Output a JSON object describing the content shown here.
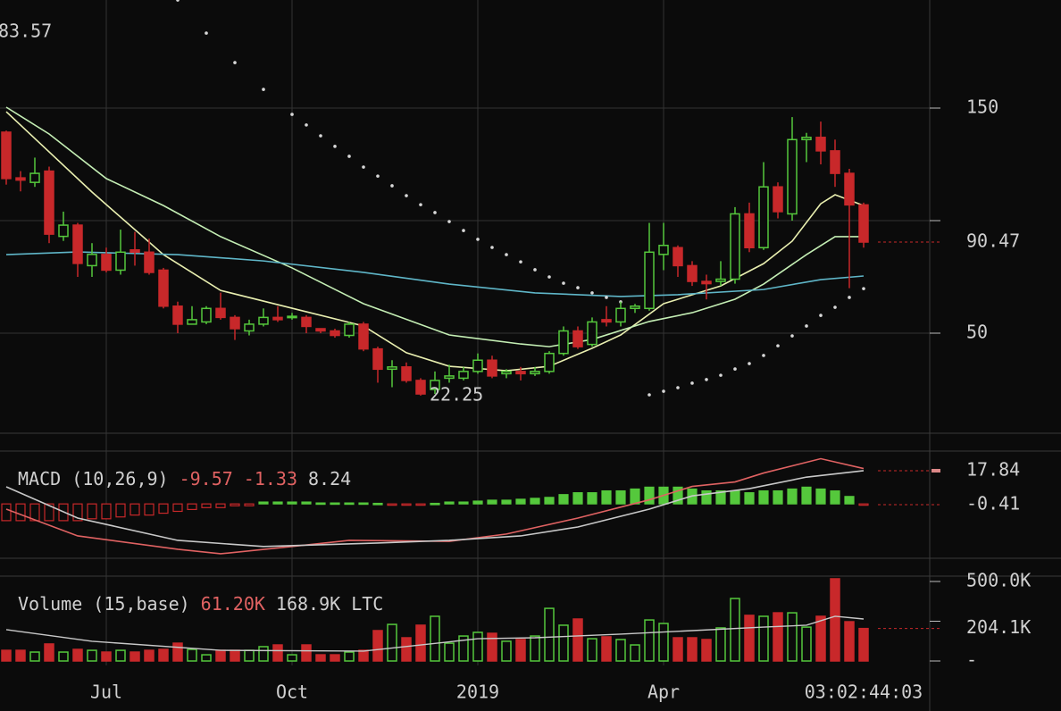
{
  "chart_data": [
    {
      "type": "candlestick",
      "categories": [
        null,
        null,
        null,
        null,
        null,
        null,
        null,
        "Jul",
        null,
        null,
        null,
        null,
        null,
        null,
        null,
        null,
        null,
        null,
        null,
        null,
        "Oct",
        null,
        null,
        null,
        null,
        null,
        null,
        null,
        null,
        null,
        null,
        null,
        null,
        "2019",
        null,
        null,
        null,
        null,
        null,
        null,
        null,
        null,
        null,
        null,
        null,
        null,
        "Apr",
        null,
        null,
        null,
        null,
        null,
        null,
        null,
        null,
        null,
        null,
        null,
        null,
        null,
        null
      ],
      "countdown": "03:02:44:03",
      "annotation": "83.57",
      "ylim": [
        5.56,
        198.02
      ],
      "yticks": [
        50,
        150
      ],
      "minor_yticks": [
        100
      ],
      "up_color": "#55c83c",
      "down_color": "#c8282a",
      "candles": {
        "open": [
          139.3,
          119,
          117,
          122,
          93,
          98,
          80,
          85,
          78,
          87,
          86,
          78,
          62,
          54,
          55,
          61,
          57,
          51,
          54,
          57,
          57,
          57,
          52,
          51,
          49,
          54,
          43,
          34,
          35,
          29,
          25,
          30,
          30,
          33,
          38,
          32,
          33,
          32,
          33,
          41,
          51,
          45,
          56,
          55,
          61,
          61,
          85,
          88,
          80,
          73,
          73,
          74,
          103,
          88,
          115,
          103,
          136,
          137,
          131,
          121,
          107
        ],
        "high": [
          140,
          122,
          128,
          124,
          104,
          99,
          90,
          88,
          96,
          95,
          92,
          79,
          64,
          62,
          62,
          68,
          58,
          56,
          61,
          62,
          59,
          58,
          52,
          52,
          55,
          55,
          44,
          38,
          37,
          30,
          33,
          36,
          35,
          41,
          40,
          34,
          35,
          35,
          42,
          53,
          53,
          57,
          62,
          64,
          63,
          99,
          99,
          89,
          82,
          76,
          82,
          106,
          108,
          126,
          117,
          146,
          139,
          144,
          136,
          123,
          108
        ],
        "low": [
          116,
          113,
          115,
          90,
          91,
          75,
          75,
          77,
          76,
          80,
          76,
          61,
          50,
          54,
          54,
          56,
          47,
          49,
          53,
          55,
          56,
          50,
          50,
          48,
          48,
          42,
          28,
          26,
          28,
          22.25,
          23,
          28,
          29,
          32,
          30,
          30,
          29,
          31,
          32,
          40,
          43,
          44,
          53,
          53,
          59,
          60,
          78,
          75,
          71,
          65,
          71,
          72,
          86,
          87,
          101,
          100,
          126,
          125,
          115,
          70,
          88
        ],
        "close": [
          118.7,
          118,
          121,
          94,
          98,
          81,
          85,
          78,
          86,
          86,
          77,
          62,
          54,
          56,
          61,
          57,
          52,
          54,
          57,
          56,
          57.5,
          53,
          51,
          49,
          54,
          43,
          34,
          35,
          29,
          23,
          29,
          31,
          33,
          38,
          31,
          33,
          32,
          33,
          41,
          51,
          44,
          55,
          55,
          61,
          62,
          86,
          89,
          80,
          73,
          72,
          74,
          103,
          88,
          115,
          104,
          136,
          137,
          131,
          121,
          107,
          90.47
        ]
      },
      "lines": [
        {
          "color": "#e9efb0",
          "x": [
            0,
            2,
            6,
            11,
            15,
            20,
            25,
            28,
            31,
            35,
            38,
            41,
            43,
            46,
            50,
            53,
            55,
            57,
            58,
            60
          ],
          "values": [
            148.4,
            136.5,
            112.7,
            84.9,
            69.0,
            61.1,
            53.2,
            41.3,
            35.3,
            33.3,
            35.3,
            43.3,
            49.2,
            63.1,
            71.0,
            80.9,
            90.9,
            107.5,
            111.5,
            106.7
          ]
        },
        {
          "color": "#c4eeb4",
          "x": [
            0,
            3,
            7,
            11,
            15,
            20,
            25,
            31,
            36,
            38,
            41,
            45,
            48,
            51,
            53,
            56,
            58,
            60
          ],
          "values": [
            150.4,
            138.5,
            118.7,
            106.7,
            92.9,
            79.0,
            63.1,
            49.2,
            45.2,
            44.0,
            47.2,
            55.2,
            59.1,
            65.1,
            71.8,
            84.9,
            92.9,
            92.9
          ]
        },
        {
          "color": "#5fb6c8",
          "x": [
            0,
            5,
            12,
            18,
            25,
            31,
            37,
            43,
            47,
            53,
            57,
            60
          ],
          "values": [
            84.9,
            86.1,
            84.9,
            82.1,
            77.0,
            71.8,
            67.9,
            66.3,
            67.1,
            69.4,
            73.8,
            75.4
          ]
        }
      ],
      "sar": {
        "color": "#d8d8d8",
        "x": [
          12,
          14,
          16,
          18,
          20,
          21,
          22,
          23,
          24,
          25,
          26,
          27,
          28,
          29,
          30,
          31,
          32,
          33,
          34,
          35,
          36,
          37,
          38,
          39,
          40,
          41,
          42,
          43,
          44,
          45,
          46,
          47,
          48,
          49,
          50,
          51,
          52,
          53,
          54,
          55,
          56,
          57,
          58,
          59,
          60
        ],
        "values": [
          198.0,
          183.3,
          170.2,
          158.3,
          147.2,
          142.5,
          137.7,
          133.0,
          128.6,
          123.8,
          119.8,
          115.5,
          111.1,
          107.1,
          103.6,
          99.6,
          95.6,
          91.7,
          88.1,
          84.9,
          81.7,
          78.2,
          75.0,
          72.2,
          70.2,
          67.9,
          65.9,
          63.9,
          61.5,
          22.6,
          24.2,
          25.8,
          27.8,
          29.4,
          31.3,
          34.1,
          36.5,
          40.1,
          44.4,
          48.8,
          53.2,
          57.9,
          61.5,
          65.9,
          69.8
        ]
      }
    },
    {
      "type": "macd",
      "title": "MACD (10,26,9)",
      "legend_values": [
        -9.57,
        -1.33,
        8.24
      ],
      "ylim": [
        -29.21,
        28.39
      ],
      "histogram": {
        "up_color": "#55c83c",
        "down_color": "#c8282a",
        "values": [
          -9,
          -9,
          -9,
          -9,
          -9,
          -9,
          -8,
          -8,
          -7,
          -6,
          -6,
          -5,
          -4,
          -3,
          -2,
          -2,
          -1,
          -1,
          1,
          1,
          1,
          1,
          0.5,
          0.5,
          0.5,
          0.5,
          0.3,
          -0.3,
          -0.5,
          -0.5,
          0.3,
          1,
          1,
          1.5,
          2,
          2,
          2.5,
          3,
          3.5,
          5,
          6,
          6,
          7,
          7,
          8,
          9,
          9,
          9,
          8,
          7,
          7,
          7,
          6,
          7,
          7,
          8,
          9,
          8,
          7,
          4,
          -0.41
        ]
      },
      "lines": [
        {
          "color": "#e06262",
          "x": [
            0,
            5,
            12,
            15,
            20,
            24,
            31,
            35,
            40,
            45,
            48,
            51,
            53,
            57,
            60
          ],
          "values": [
            -2.8,
            -17.2,
            -24.4,
            -26.8,
            -22.9,
            -19.6,
            -20.1,
            -16.2,
            -7.6,
            2.2,
            9.4,
            11.8,
            16.6,
            24.3,
            19.0
          ]
        },
        {
          "color": "#c8c8c8",
          "x": [
            0,
            5,
            12,
            18,
            26,
            31,
            36,
            40,
            45,
            48,
            52,
            56,
            60
          ],
          "values": [
            9.2,
            -7.6,
            -19.6,
            -22.9,
            -21.0,
            -19.6,
            -17.2,
            -12.4,
            -2.8,
            4.3,
            8.2,
            14.4,
            17.84
          ]
        }
      ]
    },
    {
      "type": "volume",
      "title": "Volume (15,base)",
      "legend_values": [
        61.2,
        168.9
      ],
      "legend_value_labels": [
        "61.20K",
        "168.9K LTC"
      ],
      "ylim": [
        0,
        533.7
      ],
      "yticks": [
        {
          "value": 500,
          "label": "500.0K"
        },
        {
          "value": 0,
          "label": "-"
        }
      ],
      "minor_yticks": [
        250
      ],
      "values": [
        67,
        67,
        56,
        107,
        56,
        73,
        67,
        56,
        67,
        56,
        67,
        73,
        112,
        73,
        39,
        67,
        67,
        67,
        90,
        101,
        39,
        101,
        39,
        39,
        56,
        67,
        191,
        230,
        146,
        225,
        281,
        112,
        157,
        180,
        174,
        124,
        135,
        157,
        331,
        225,
        264,
        140,
        152,
        135,
        101,
        258,
        236,
        146,
        146,
        135,
        208,
        393,
        287,
        281,
        303,
        303,
        213,
        281,
        517,
        247,
        204.1
      ],
      "last_label": "204.1K",
      "ma": {
        "color": "#c8c8c8",
        "x": [
          0,
          6,
          15,
          25,
          29,
          33,
          37,
          43,
          48,
          53,
          56,
          58,
          60
        ],
        "values": [
          197,
          124,
          67,
          62,
          101,
          140,
          146,
          169,
          191,
          213,
          225,
          281,
          264
        ]
      }
    }
  ]
}
